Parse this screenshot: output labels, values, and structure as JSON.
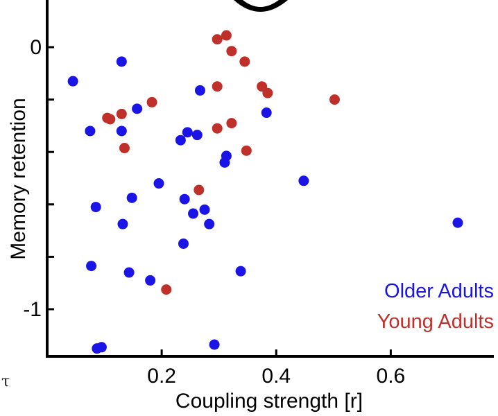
{
  "chart_data": {
    "type": "scatter",
    "xlabel": "Coupling strength [r]",
    "ylabel": "Memory retention",
    "xlim": [
      0.0,
      0.78
    ],
    "ylim": [
      -1.18,
      0.18
    ],
    "x_ticks": [
      0.2,
      0.4,
      0.6
    ],
    "x_tick_labels": [
      "0.2",
      "0.4",
      "0.6"
    ],
    "y_ticks": [
      0,
      -0.2,
      -0.4,
      -0.6,
      -0.8,
      -1
    ],
    "y_tick_labels": [
      "0",
      "",
      "",
      "",
      "",
      "-1"
    ],
    "legend_position": "bottom-right",
    "edge_glyph": "τ",
    "series": [
      {
        "name": "Older Adults",
        "color": "#1a14e6",
        "points": [
          [
            0.045,
            -0.13
          ],
          [
            0.13,
            -0.055
          ],
          [
            0.075,
            -0.32
          ],
          [
            0.13,
            -0.32
          ],
          [
            0.157,
            -0.235
          ],
          [
            0.267,
            -0.165
          ],
          [
            0.383,
            -0.25
          ],
          [
            0.233,
            -0.355
          ],
          [
            0.245,
            -0.325
          ],
          [
            0.262,
            -0.335
          ],
          [
            0.313,
            -0.415
          ],
          [
            0.31,
            -0.44
          ],
          [
            0.195,
            -0.52
          ],
          [
            0.448,
            -0.51
          ],
          [
            0.085,
            -0.61
          ],
          [
            0.148,
            -0.575
          ],
          [
            0.24,
            -0.58
          ],
          [
            0.275,
            -0.62
          ],
          [
            0.255,
            -0.635
          ],
          [
            0.283,
            -0.675
          ],
          [
            0.132,
            -0.675
          ],
          [
            0.238,
            -0.75
          ],
          [
            0.717,
            -0.67
          ],
          [
            0.077,
            -0.835
          ],
          [
            0.143,
            -0.86
          ],
          [
            0.18,
            -0.89
          ],
          [
            0.338,
            -0.855
          ],
          [
            0.087,
            -1.15
          ],
          [
            0.095,
            -1.145
          ],
          [
            0.292,
            -1.135
          ]
        ]
      },
      {
        "name": "Young Adults",
        "color": "#c0302a",
        "points": [
          [
            0.297,
            0.03
          ],
          [
            0.313,
            0.045
          ],
          [
            0.322,
            -0.015
          ],
          [
            0.345,
            -0.055
          ],
          [
            0.297,
            -0.15
          ],
          [
            0.375,
            -0.15
          ],
          [
            0.385,
            -0.175
          ],
          [
            0.183,
            -0.21
          ],
          [
            0.502,
            -0.2
          ],
          [
            0.13,
            -0.255
          ],
          [
            0.11,
            -0.275
          ],
          [
            0.105,
            -0.27
          ],
          [
            0.297,
            -0.31
          ],
          [
            0.322,
            -0.29
          ],
          [
            0.135,
            -0.385
          ],
          [
            0.348,
            -0.395
          ],
          [
            0.265,
            -0.545
          ],
          [
            0.208,
            -0.925
          ]
        ]
      }
    ]
  }
}
